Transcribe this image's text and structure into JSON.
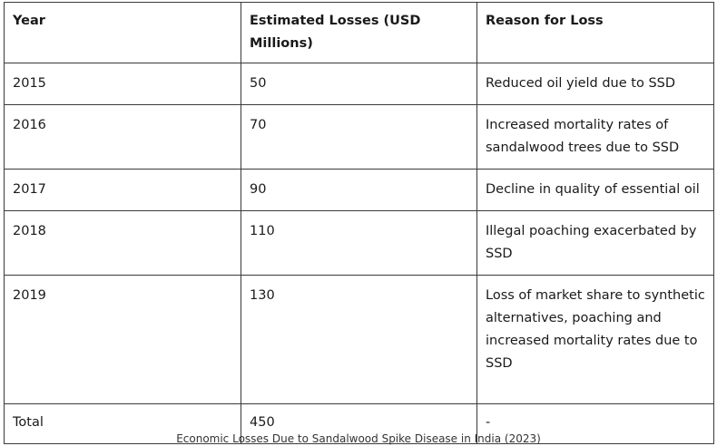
{
  "table": {
    "headers": [
      "Year",
      "Estimated Losses (USD Millions)",
      "Reason for Loss"
    ],
    "rows": [
      {
        "year": "2015",
        "loss": "50",
        "reason": "Reduced oil yield due to SSD"
      },
      {
        "year": "2016",
        "loss": "70",
        "reason": "Increased mortality rates of sandalwood trees due to SSD"
      },
      {
        "year": "2017",
        "loss": "90",
        "reason": "Decline in quality of essential oil"
      },
      {
        "year": "2018",
        "loss": "110",
        "reason": "Illegal poaching exacerbated by SSD"
      },
      {
        "year": "2019",
        "loss": "130",
        "reason": "Loss of market share to synthetic alternatives, poaching and increased mortality rates due to SSD"
      }
    ],
    "total": {
      "year": "Total",
      "loss": "450",
      "reason": "-"
    }
  },
  "caption": "Economic Losses Due to Sandalwood Spike Disease in India (2023)"
}
